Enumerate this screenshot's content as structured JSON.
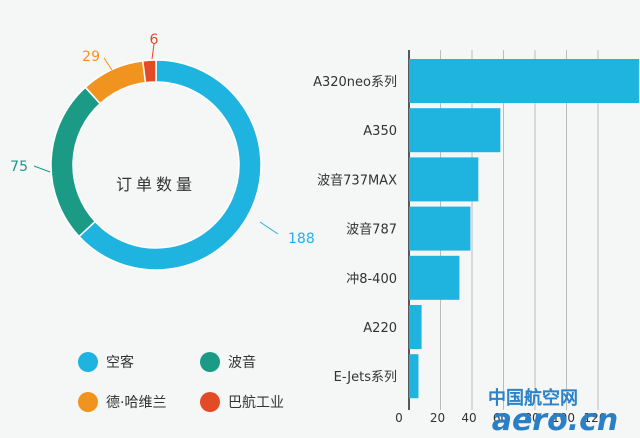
{
  "chart_data": [
    {
      "type": "pie",
      "center_label": "订单数量",
      "categories": [
        "空客",
        "波音",
        "德·哈维兰",
        "巴航工业"
      ],
      "values": [
        188,
        75,
        29,
        6
      ],
      "value_labels": [
        "188",
        "75",
        "29",
        "6"
      ],
      "colors": [
        "#1fb4e0",
        "#1b9a86",
        "#f0931f",
        "#e24b26"
      ],
      "legend": [
        "空客",
        "波音",
        "德·哈维兰",
        "巴航工业"
      ],
      "legend_placement": "bottom"
    },
    {
      "type": "bar",
      "orientation": "horizontal",
      "categories": [
        "A320neo系列",
        "A350",
        "波音737MAX",
        "波音787",
        "冲8-400",
        "A220",
        "E-Jets系列"
      ],
      "values": [
        146,
        58,
        44,
        39,
        32,
        8,
        6
      ],
      "color": "#1fb4e0",
      "xlim": [
        0,
        140
      ],
      "xticks": [
        "0",
        "20",
        "40",
        "60",
        "80",
        "100",
        "120"
      ],
      "grid": true
    }
  ],
  "watermark": {
    "top": "中国航空网",
    "bottom": "aero.cn"
  }
}
